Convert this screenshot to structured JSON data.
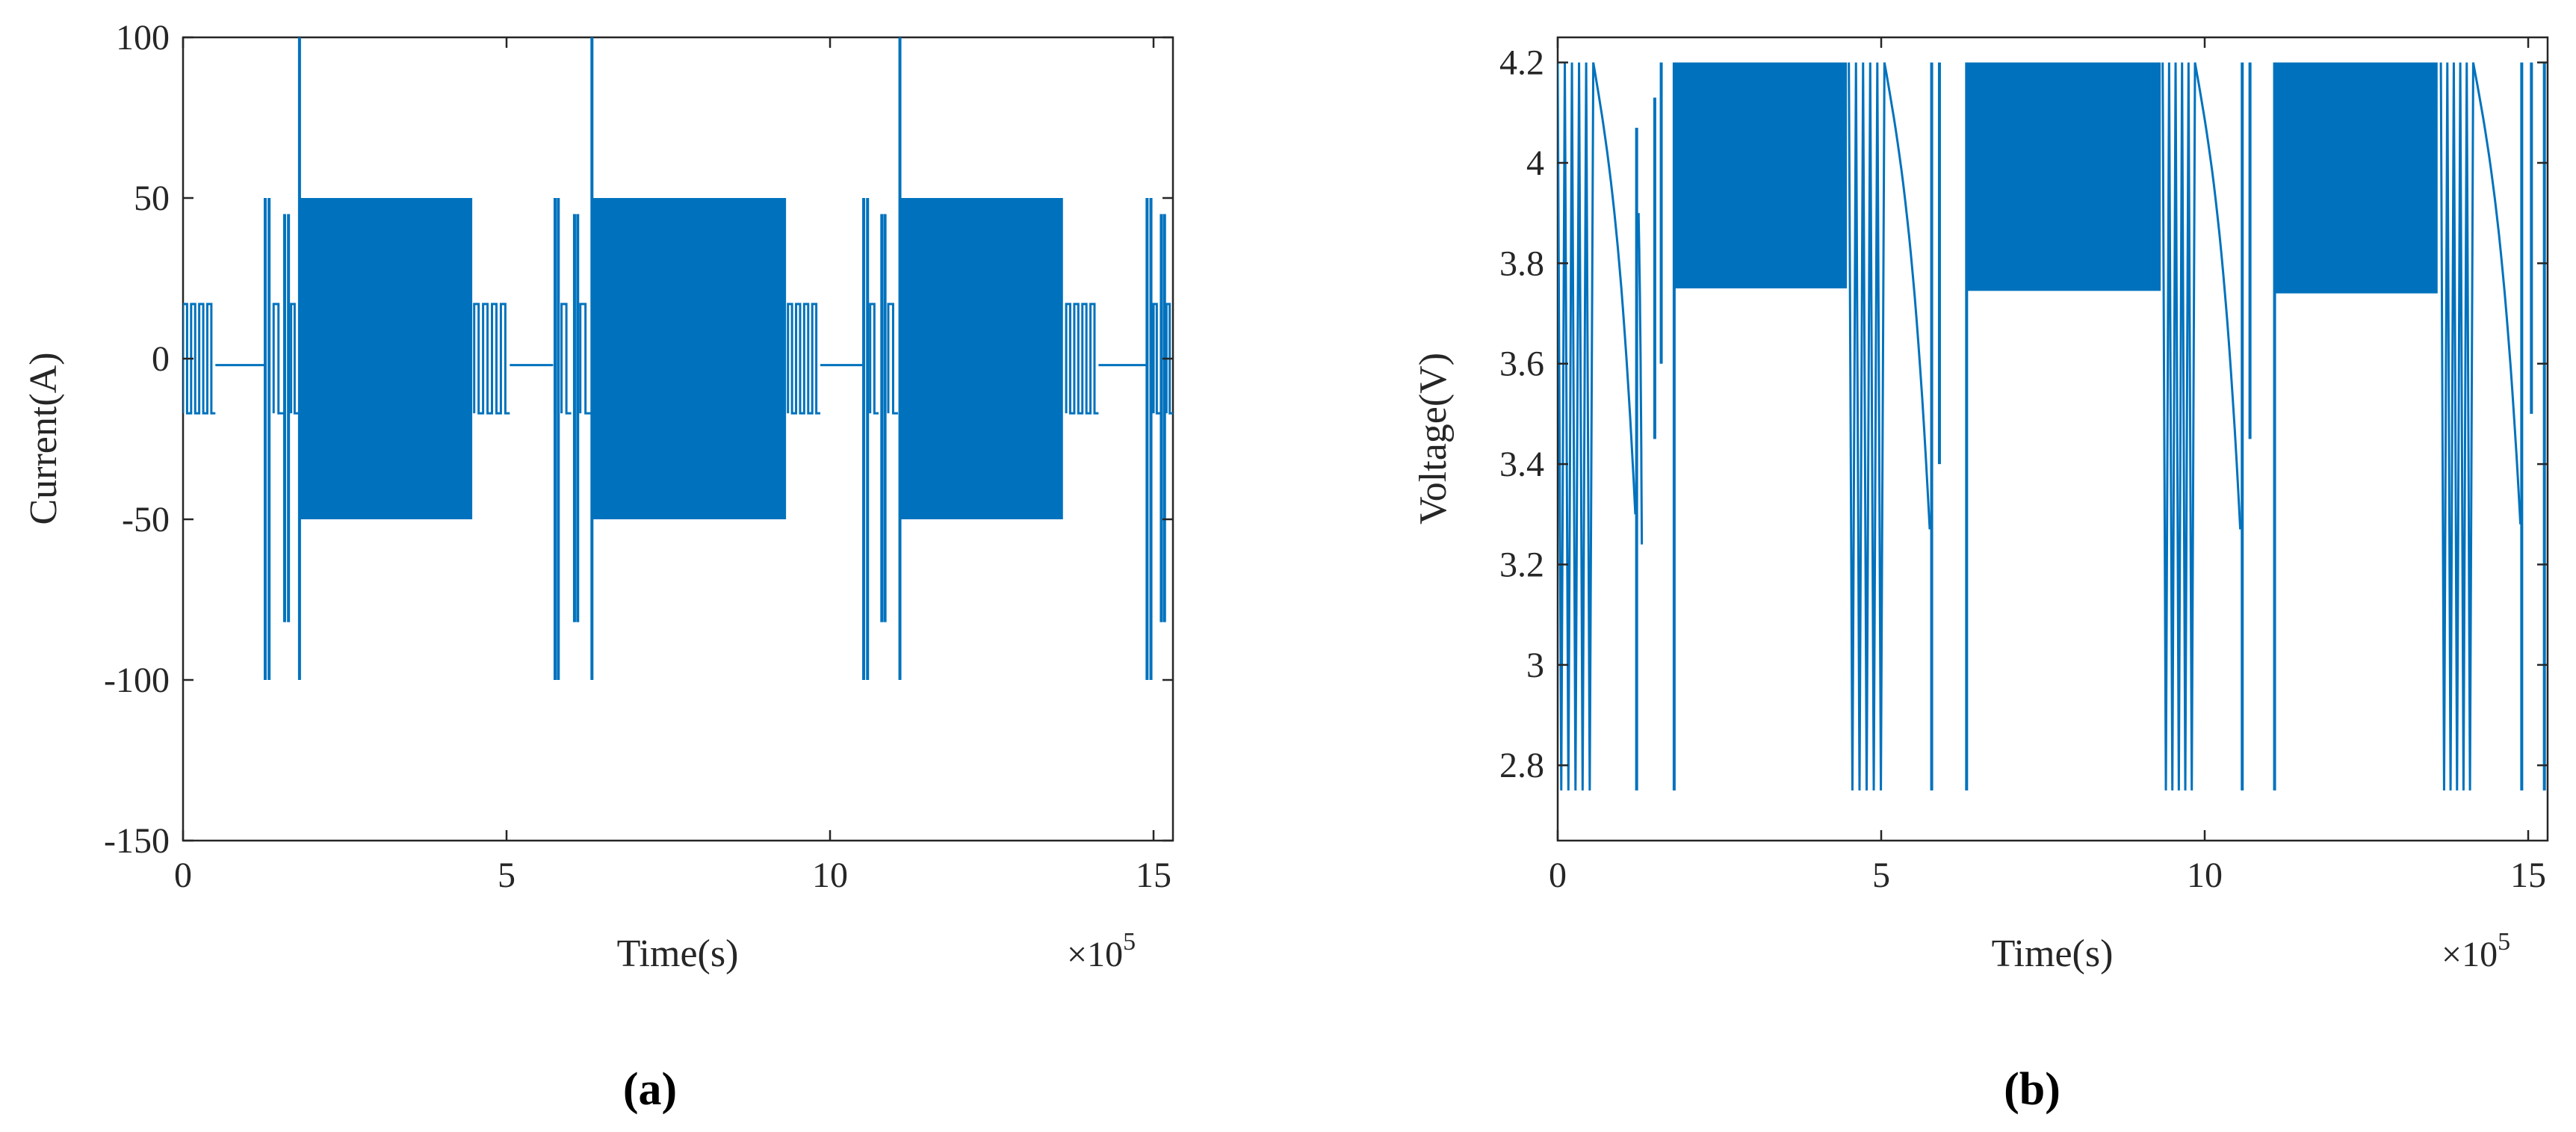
{
  "colors": {
    "series": "#0072BD",
    "axis": "#262626",
    "background": "#ffffff"
  },
  "chart_data": [
    {
      "panel": "(a)",
      "type": "line",
      "xlabel": "Time(s)",
      "ylabel": "Current(A)",
      "x_multiplier_base": "×10",
      "x_multiplier_exp": "5",
      "xlim": [
        0,
        15.3
      ],
      "ylim": [
        -150,
        100
      ],
      "xticks": [
        0,
        5,
        10,
        15
      ],
      "yticks": [
        -150,
        -100,
        -50,
        0,
        50,
        100
      ],
      "grid": false,
      "x_unit_note": "x values in units of 10^5 s",
      "series": [
        {
          "color": "#0072BD",
          "segments": [
            {
              "kind": "pulses",
              "x0": 0.0,
              "x1": 0.5,
              "count": 4,
              "low": -17,
              "high": 17
            },
            {
              "kind": "flat",
              "x0": 0.5,
              "x1": 1.25,
              "y": -2
            },
            {
              "kind": "spike",
              "x": 1.27,
              "lo": -100,
              "hi": 50
            },
            {
              "kind": "spike",
              "x": 1.33,
              "lo": -100,
              "hi": 50
            },
            {
              "kind": "pulses",
              "x0": 1.4,
              "x1": 1.55,
              "count": 1,
              "low": -17,
              "high": 17
            },
            {
              "kind": "spike",
              "x": 1.57,
              "lo": -82,
              "hi": 45
            },
            {
              "kind": "spike",
              "x": 1.63,
              "lo": -82,
              "hi": 45
            },
            {
              "kind": "pulses",
              "x0": 1.67,
              "x1": 1.78,
              "count": 1,
              "low": -17,
              "high": 17
            },
            {
              "kind": "spike",
              "x": 1.8,
              "lo": -100,
              "hi": 100
            },
            {
              "kind": "band",
              "x0": 1.8,
              "x1": 4.47,
              "lo": -50,
              "hi": 50
            },
            {
              "kind": "pulses",
              "x0": 4.5,
              "x1": 5.05,
              "count": 4,
              "low": -17,
              "high": 17
            },
            {
              "kind": "flat",
              "x0": 5.05,
              "x1": 5.72,
              "y": -2
            },
            {
              "kind": "spike",
              "x": 5.75,
              "lo": -100,
              "hi": 50
            },
            {
              "kind": "spike",
              "x": 5.8,
              "lo": -100,
              "hi": 50
            },
            {
              "kind": "pulses",
              "x0": 5.85,
              "x1": 6.0,
              "count": 1,
              "low": -17,
              "high": 17
            },
            {
              "kind": "spike",
              "x": 6.05,
              "lo": -82,
              "hi": 45
            },
            {
              "kind": "spike",
              "x": 6.1,
              "lo": -82,
              "hi": 45
            },
            {
              "kind": "pulses",
              "x0": 6.14,
              "x1": 6.3,
              "count": 1,
              "low": -17,
              "high": 17
            },
            {
              "kind": "spike",
              "x": 6.32,
              "lo": -100,
              "hi": 100
            },
            {
              "kind": "band",
              "x0": 6.32,
              "x1": 9.32,
              "lo": -50,
              "hi": 50
            },
            {
              "kind": "pulses",
              "x0": 9.35,
              "x1": 9.85,
              "count": 4,
              "low": -17,
              "high": 17
            },
            {
              "kind": "flat",
              "x0": 9.85,
              "x1": 10.5,
              "y": -2
            },
            {
              "kind": "spike",
              "x": 10.52,
              "lo": -100,
              "hi": 50
            },
            {
              "kind": "spike",
              "x": 10.58,
              "lo": -100,
              "hi": 50
            },
            {
              "kind": "pulses",
              "x0": 10.62,
              "x1": 10.75,
              "count": 1,
              "low": -17,
              "high": 17
            },
            {
              "kind": "spike",
              "x": 10.8,
              "lo": -82,
              "hi": 45
            },
            {
              "kind": "spike",
              "x": 10.85,
              "lo": -82,
              "hi": 45
            },
            {
              "kind": "pulses",
              "x0": 10.9,
              "x1": 11.05,
              "count": 1,
              "low": -17,
              "high": 17
            },
            {
              "kind": "spike",
              "x": 11.08,
              "lo": -100,
              "hi": 100
            },
            {
              "kind": "band",
              "x0": 11.08,
              "x1": 13.6,
              "lo": -50,
              "hi": 50
            },
            {
              "kind": "pulses",
              "x0": 13.65,
              "x1": 14.15,
              "count": 4,
              "low": -17,
              "high": 17
            },
            {
              "kind": "flat",
              "x0": 14.15,
              "x1": 14.88,
              "y": -2
            },
            {
              "kind": "spike",
              "x": 14.9,
              "lo": -100,
              "hi": 50
            },
            {
              "kind": "spike",
              "x": 14.96,
              "lo": -100,
              "hi": 50
            },
            {
              "kind": "pulses",
              "x0": 15.0,
              "x1": 15.1,
              "count": 1,
              "low": -17,
              "high": 17
            },
            {
              "kind": "spike",
              "x": 15.12,
              "lo": -82,
              "hi": 45
            },
            {
              "kind": "spike",
              "x": 15.17,
              "lo": -82,
              "hi": 45
            },
            {
              "kind": "pulses",
              "x0": 15.2,
              "x1": 15.3,
              "count": 1,
              "low": -17,
              "high": 17
            }
          ]
        }
      ]
    },
    {
      "panel": "(b)",
      "type": "line",
      "xlabel": "Time(s)",
      "ylabel": "Voltage(V)",
      "x_multiplier_base": "×10",
      "x_multiplier_exp": "5",
      "xlim": [
        0,
        15.3
      ],
      "ylim": [
        2.65,
        4.25
      ],
      "xticks": [
        0,
        5,
        10,
        15
      ],
      "yticks": [
        2.8,
        3,
        3.2,
        3.4,
        3.6,
        3.8,
        4,
        4.2
      ],
      "grid": false,
      "x_unit_note": "x values in units of 10^5 s",
      "series": [
        {
          "color": "#0072BD",
          "segments": [
            {
              "kind": "osc",
              "x0": 0.0,
              "x1": 0.55,
              "count": 5,
              "lo": 2.75,
              "hi": 4.2
            },
            {
              "kind": "decay",
              "x0": 0.55,
              "x1": 1.2,
              "y0": 4.2,
              "y1": 3.3
            },
            {
              "kind": "spike",
              "x": 1.22,
              "lo": 2.75,
              "hi": 4.07
            },
            {
              "kind": "decay",
              "x0": 1.25,
              "x1": 1.3,
              "y0": 3.9,
              "y1": 3.24
            },
            {
              "kind": "spike",
              "x": 1.5,
              "lo": 3.45,
              "hi": 4.13
            },
            {
              "kind": "spike",
              "x": 1.6,
              "lo": 3.6,
              "hi": 4.2
            },
            {
              "kind": "spike",
              "x": 1.8,
              "lo": 2.75,
              "hi": 4.2
            },
            {
              "kind": "band",
              "x0": 1.8,
              "x1": 4.47,
              "lo": 3.75,
              "hi": 4.2
            },
            {
              "kind": "osc",
              "x0": 4.5,
              "x1": 5.05,
              "count": 5,
              "lo": 2.75,
              "hi": 4.2
            },
            {
              "kind": "decay",
              "x0": 5.05,
              "x1": 5.75,
              "y0": 4.2,
              "y1": 3.27
            },
            {
              "kind": "spike",
              "x": 5.78,
              "lo": 2.75,
              "hi": 4.2
            },
            {
              "kind": "spike",
              "x": 5.9,
              "lo": 3.4,
              "hi": 4.2
            },
            {
              "kind": "spike",
              "x": 6.32,
              "lo": 2.75,
              "hi": 4.2
            },
            {
              "kind": "band",
              "x0": 6.32,
              "x1": 9.32,
              "lo": 3.745,
              "hi": 4.2
            },
            {
              "kind": "osc",
              "x0": 9.35,
              "x1": 9.85,
              "count": 5,
              "lo": 2.75,
              "hi": 4.2
            },
            {
              "kind": "decay",
              "x0": 9.85,
              "x1": 10.55,
              "y0": 4.2,
              "y1": 3.27
            },
            {
              "kind": "spike",
              "x": 10.58,
              "lo": 2.75,
              "hi": 4.2
            },
            {
              "kind": "spike",
              "x": 10.7,
              "lo": 3.45,
              "hi": 4.2
            },
            {
              "kind": "spike",
              "x": 11.08,
              "lo": 2.75,
              "hi": 4.2
            },
            {
              "kind": "band",
              "x0": 11.08,
              "x1": 13.6,
              "lo": 3.74,
              "hi": 4.2
            },
            {
              "kind": "osc",
              "x0": 13.65,
              "x1": 14.15,
              "count": 5,
              "lo": 2.75,
              "hi": 4.2
            },
            {
              "kind": "decay",
              "x0": 14.15,
              "x1": 14.88,
              "y0": 4.2,
              "y1": 3.28
            },
            {
              "kind": "spike",
              "x": 14.9,
              "lo": 2.75,
              "hi": 4.2
            },
            {
              "kind": "spike",
              "x": 15.05,
              "lo": 3.5,
              "hi": 4.2
            },
            {
              "kind": "spike",
              "x": 15.25,
              "lo": 2.75,
              "hi": 4.2
            }
          ]
        }
      ]
    }
  ]
}
